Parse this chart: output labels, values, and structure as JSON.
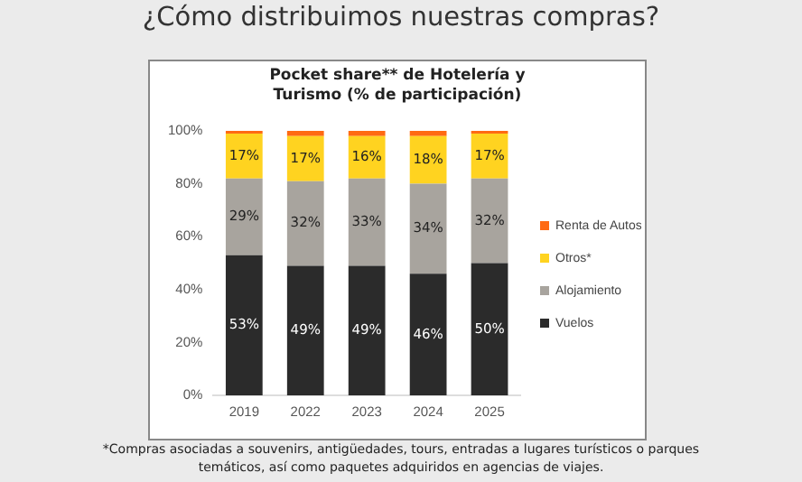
{
  "chart_data": {
    "type": "bar",
    "stacked": true,
    "title": "¿Cómo distribuimos nuestras compras?",
    "subtitle": "Pocket share** de Hotelería y Turismo (% de participación)",
    "annotations": [
      "*Compras asociadas a souvenirs, antigüedades, tours, entradas a lugares turísticos o parques temáticos, así como paquetes adquiridos en agencias de viajes."
    ],
    "categories": [
      "2019",
      "2022",
      "2023",
      "2024",
      "2025"
    ],
    "series": [
      {
        "name": "Vuelos",
        "color": "#2b2b2b",
        "values": [
          53,
          49,
          49,
          46,
          50
        ],
        "value_labels": [
          "53%",
          "49%",
          "49%",
          "46%",
          "50%"
        ]
      },
      {
        "name": "Alojamiento",
        "color": "#a8a49e",
        "values": [
          29,
          32,
          33,
          34,
          32
        ],
        "value_labels": [
          "29%",
          "32%",
          "33%",
          "34%",
          "32%"
        ]
      },
      {
        "name": "Otros*",
        "color": "#ffd320",
        "values": [
          17,
          17,
          16,
          18,
          17
        ],
        "value_labels": [
          "17%",
          "17%",
          "16%",
          "18%",
          "17%"
        ]
      },
      {
        "name": "Renta de Autos",
        "color": "#ff6a13",
        "values": [
          1,
          2,
          2,
          2,
          1
        ]
      }
    ],
    "ylim": [
      0,
      100
    ],
    "yticks": [
      {
        "value": 0,
        "label": "0%"
      },
      {
        "value": 20,
        "label": "20%"
      },
      {
        "value": 40,
        "label": "40%"
      },
      {
        "value": 60,
        "label": "60%"
      },
      {
        "value": 80,
        "label": "80%"
      },
      {
        "value": 100,
        "label": "100%"
      }
    ],
    "grid": false,
    "legend": "right"
  }
}
